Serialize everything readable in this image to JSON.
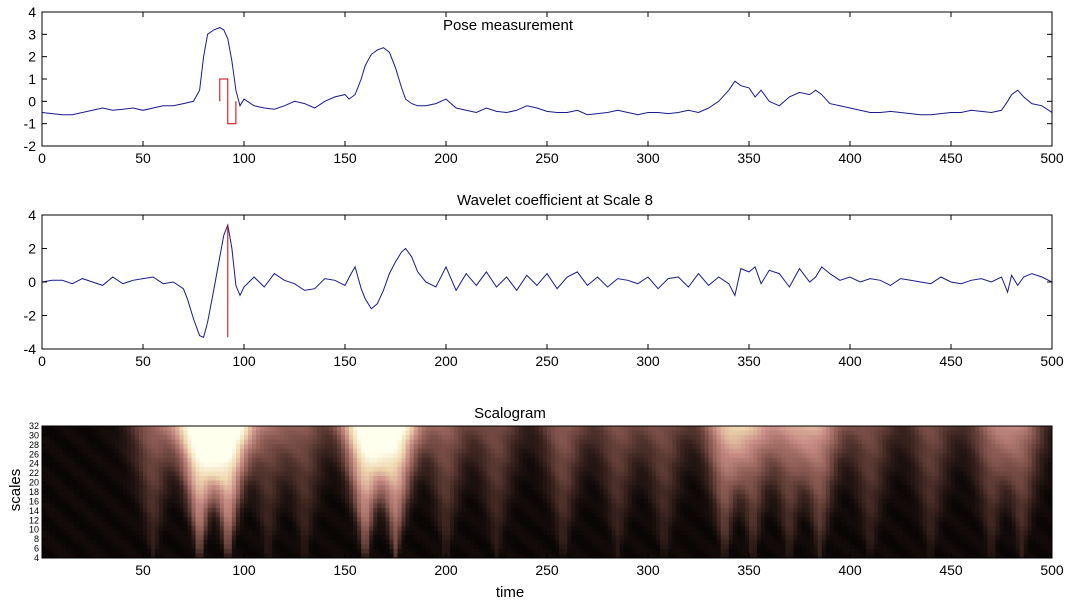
{
  "chart_data": [
    {
      "type": "line",
      "title": "Pose measurement",
      "xlim": [
        0,
        500
      ],
      "ylim": [
        -2,
        4
      ],
      "xticks": [
        "0",
        "50",
        "100",
        "150",
        "200",
        "250",
        "300",
        "350",
        "400",
        "450",
        "500"
      ],
      "yticks": [
        "4",
        "3",
        "2",
        "1",
        "0",
        "-1",
        "-2"
      ],
      "series": [
        {
          "color": "#1a1a8c",
          "x": [
            0,
            5,
            10,
            15,
            20,
            25,
            30,
            35,
            40,
            45,
            50,
            55,
            60,
            65,
            70,
            75,
            78,
            80,
            82,
            85,
            88,
            90,
            92,
            94,
            96,
            98,
            100,
            105,
            110,
            115,
            120,
            125,
            130,
            135,
            140,
            145,
            150,
            152,
            155,
            158,
            160,
            163,
            166,
            169,
            172,
            175,
            178,
            180,
            183,
            186,
            190,
            195,
            200,
            205,
            210,
            215,
            220,
            225,
            230,
            235,
            240,
            245,
            250,
            255,
            260,
            265,
            270,
            275,
            280,
            285,
            290,
            295,
            300,
            305,
            310,
            315,
            320,
            325,
            330,
            335,
            340,
            343,
            346,
            350,
            353,
            356,
            360,
            365,
            370,
            375,
            380,
            383,
            386,
            390,
            395,
            400,
            405,
            410,
            415,
            420,
            425,
            430,
            435,
            440,
            445,
            450,
            455,
            460,
            465,
            470,
            475,
            478,
            480,
            483,
            486,
            490,
            495,
            500
          ],
          "y": [
            -0.5,
            -0.55,
            -0.6,
            -0.6,
            -0.5,
            -0.4,
            -0.3,
            -0.4,
            -0.35,
            -0.3,
            -0.4,
            -0.3,
            -0.2,
            -0.2,
            -0.1,
            0.0,
            0.5,
            2.0,
            3.0,
            3.2,
            3.3,
            3.2,
            2.8,
            1.8,
            0.5,
            -0.2,
            0.1,
            -0.2,
            -0.3,
            -0.35,
            -0.2,
            0.0,
            -0.1,
            -0.3,
            0.0,
            0.2,
            0.3,
            0.1,
            0.3,
            1.0,
            1.6,
            2.1,
            2.3,
            2.4,
            2.2,
            1.5,
            0.6,
            0.1,
            -0.1,
            -0.2,
            -0.2,
            -0.1,
            0.1,
            -0.3,
            -0.4,
            -0.5,
            -0.3,
            -0.45,
            -0.5,
            -0.4,
            -0.2,
            -0.3,
            -0.45,
            -0.5,
            -0.5,
            -0.4,
            -0.6,
            -0.55,
            -0.5,
            -0.4,
            -0.5,
            -0.6,
            -0.5,
            -0.5,
            -0.55,
            -0.5,
            -0.4,
            -0.5,
            -0.3,
            0.0,
            0.5,
            0.9,
            0.7,
            0.6,
            0.2,
            0.5,
            0.0,
            -0.2,
            0.2,
            0.4,
            0.3,
            0.5,
            0.3,
            -0.1,
            -0.2,
            -0.3,
            -0.4,
            -0.5,
            -0.5,
            -0.45,
            -0.5,
            -0.55,
            -0.6,
            -0.6,
            -0.55,
            -0.5,
            -0.5,
            -0.4,
            -0.45,
            -0.5,
            -0.4,
            0.0,
            0.3,
            0.5,
            0.2,
            -0.1,
            -0.2,
            -0.5
          ]
        },
        {
          "color": "#cc0000",
          "x": [
            88,
            88,
            92,
            92,
            96,
            96
          ],
          "y": [
            0,
            1,
            1,
            -1,
            -1,
            0
          ]
        }
      ]
    },
    {
      "type": "line",
      "title": "Wavelet coefficient at Scale 8",
      "xlim": [
        0,
        500
      ],
      "ylim": [
        -4,
        4
      ],
      "xticks": [
        "0",
        "50",
        "100",
        "150",
        "200",
        "250",
        "300",
        "350",
        "400",
        "450",
        "500"
      ],
      "yticks": [
        "4",
        "2",
        "0",
        "-2",
        "-4"
      ],
      "series": [
        {
          "color": "#1a1a8c",
          "x": [
            0,
            5,
            10,
            15,
            20,
            25,
            30,
            35,
            40,
            45,
            50,
            55,
            60,
            65,
            70,
            72,
            75,
            78,
            80,
            82,
            85,
            88,
            90,
            92,
            94,
            96,
            98,
            100,
            105,
            110,
            115,
            120,
            125,
            130,
            135,
            140,
            145,
            150,
            153,
            155,
            158,
            160,
            163,
            166,
            169,
            172,
            175,
            178,
            180,
            183,
            186,
            190,
            195,
            200,
            205,
            210,
            215,
            220,
            225,
            230,
            235,
            240,
            245,
            250,
            255,
            260,
            265,
            270,
            275,
            280,
            285,
            290,
            295,
            300,
            305,
            310,
            315,
            320,
            325,
            330,
            335,
            340,
            343,
            346,
            350,
            353,
            356,
            360,
            365,
            370,
            375,
            380,
            383,
            386,
            390,
            395,
            400,
            405,
            410,
            415,
            420,
            425,
            430,
            435,
            440,
            445,
            450,
            455,
            460,
            465,
            470,
            475,
            478,
            480,
            483,
            486,
            490,
            495,
            500
          ],
          "y": [
            0,
            0.1,
            0.1,
            -0.1,
            0.2,
            0.0,
            -0.2,
            0.3,
            -0.1,
            0.1,
            0.2,
            0.3,
            -0.1,
            0.0,
            -0.4,
            -1.0,
            -2.2,
            -3.2,
            -3.3,
            -2.4,
            -0.5,
            1.5,
            2.8,
            3.4,
            2.0,
            -0.2,
            -0.8,
            -0.3,
            0.3,
            -0.3,
            0.5,
            0.1,
            -0.1,
            -0.5,
            -0.4,
            0.2,
            0.1,
            -0.2,
            0.5,
            0.9,
            -0.4,
            -1.0,
            -1.6,
            -1.3,
            -0.5,
            0.5,
            1.2,
            1.8,
            2.0,
            1.5,
            0.6,
            0.0,
            -0.3,
            0.9,
            -0.5,
            0.5,
            -0.2,
            0.6,
            -0.3,
            0.3,
            -0.5,
            0.4,
            -0.2,
            0.5,
            -0.4,
            0.3,
            0.6,
            -0.2,
            0.3,
            -0.3,
            0.2,
            0.1,
            -0.1,
            0.3,
            -0.4,
            0.2,
            0.3,
            -0.3,
            0.5,
            -0.2,
            0.3,
            -0.1,
            -0.8,
            0.8,
            0.6,
            0.9,
            -0.1,
            0.7,
            0.5,
            -0.3,
            0.8,
            0.0,
            0.3,
            0.9,
            0.5,
            0.1,
            0.3,
            0.0,
            0.2,
            0.1,
            -0.2,
            0.2,
            0.1,
            0.0,
            -0.1,
            0.3,
            0.0,
            -0.1,
            0.1,
            0.2,
            0.0,
            0.3,
            -0.6,
            0.4,
            -0.2,
            0.3,
            0.5,
            0.3,
            0.0
          ]
        },
        {
          "color": "#cc0000",
          "x": [
            92,
            92
          ],
          "y": [
            -3.3,
            3.4
          ]
        }
      ]
    },
    {
      "type": "heatmap",
      "title": "Scalogram",
      "xlabel": "time",
      "ylabel": "scales",
      "xlim": [
        0,
        500
      ],
      "ylim": [
        4,
        32
      ],
      "xticks": [
        "50",
        "100",
        "150",
        "200",
        "250",
        "300",
        "350",
        "400",
        "450",
        "500"
      ],
      "yticks": [
        "32",
        "30",
        "28",
        "26",
        "24",
        "22",
        "20",
        "18",
        "16",
        "14",
        "12",
        "10",
        "8",
        "6",
        "4"
      ],
      "colormap": [
        "#000000",
        "#3d2520",
        "#8a5a52",
        "#c98e86",
        "#f0d8b0",
        "#ffffee"
      ],
      "hot_spots": [
        {
          "t": 78,
          "strength": 1.0
        },
        {
          "t": 92,
          "strength": 1.0
        },
        {
          "t": 160,
          "strength": 0.95
        },
        {
          "t": 175,
          "strength": 0.9
        },
        {
          "t": 55,
          "strength": 0.35
        },
        {
          "t": 112,
          "strength": 0.3
        },
        {
          "t": 130,
          "strength": 0.3
        },
        {
          "t": 200,
          "strength": 0.35
        },
        {
          "t": 225,
          "strength": 0.3
        },
        {
          "t": 258,
          "strength": 0.35
        },
        {
          "t": 285,
          "strength": 0.3
        },
        {
          "t": 308,
          "strength": 0.3
        },
        {
          "t": 338,
          "strength": 0.55
        },
        {
          "t": 352,
          "strength": 0.45
        },
        {
          "t": 370,
          "strength": 0.4
        },
        {
          "t": 385,
          "strength": 0.5
        },
        {
          "t": 410,
          "strength": 0.3
        },
        {
          "t": 440,
          "strength": 0.3
        },
        {
          "t": 470,
          "strength": 0.35
        },
        {
          "t": 485,
          "strength": 0.4
        }
      ]
    }
  ]
}
